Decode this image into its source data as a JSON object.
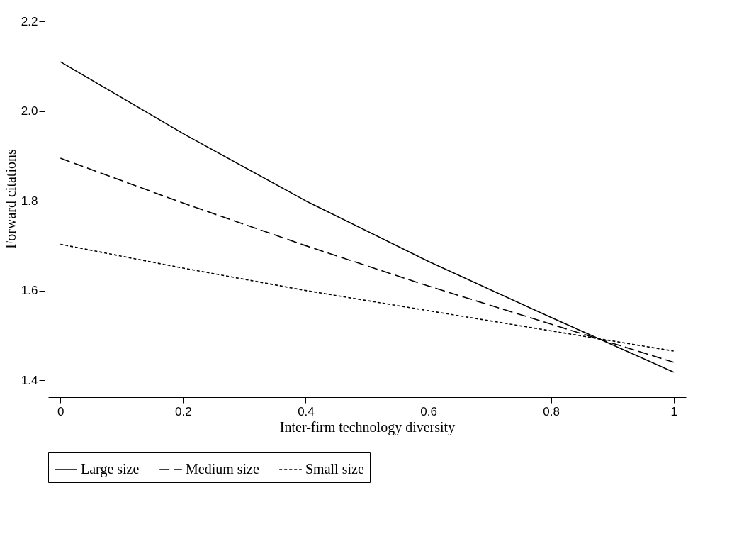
{
  "chart_data": {
    "type": "line",
    "xlabel": "Inter-firm technology diversity",
    "ylabel": "Forward citations",
    "x": [
      0,
      0.2,
      0.4,
      0.6,
      0.8,
      1
    ],
    "series": [
      {
        "name": "Large size",
        "color": "#000000",
        "line_style": "solid",
        "values": [
          2.11,
          1.95,
          1.8,
          1.665,
          1.54,
          1.418
        ]
      },
      {
        "name": "Medium size",
        "color": "#000000",
        "line_style": "dashed",
        "values": [
          1.895,
          1.795,
          1.7,
          1.61,
          1.525,
          1.44
        ]
      },
      {
        "name": "Small size",
        "color": "#000000",
        "line_style": "dotted",
        "values": [
          1.703,
          1.65,
          1.6,
          1.555,
          1.51,
          1.465
        ]
      }
    ],
    "xlim": [
      -0.02,
      1.02
    ],
    "xticks": [
      0,
      0.2,
      0.4,
      0.6,
      0.8,
      1
    ],
    "ylim": [
      1.37,
      2.24
    ],
    "yticks": [
      1.4,
      1.6,
      1.8,
      {
        "value": 2,
        "label": "2.0"
      },
      2.2
    ],
    "grid": false,
    "legend": "bottom"
  }
}
